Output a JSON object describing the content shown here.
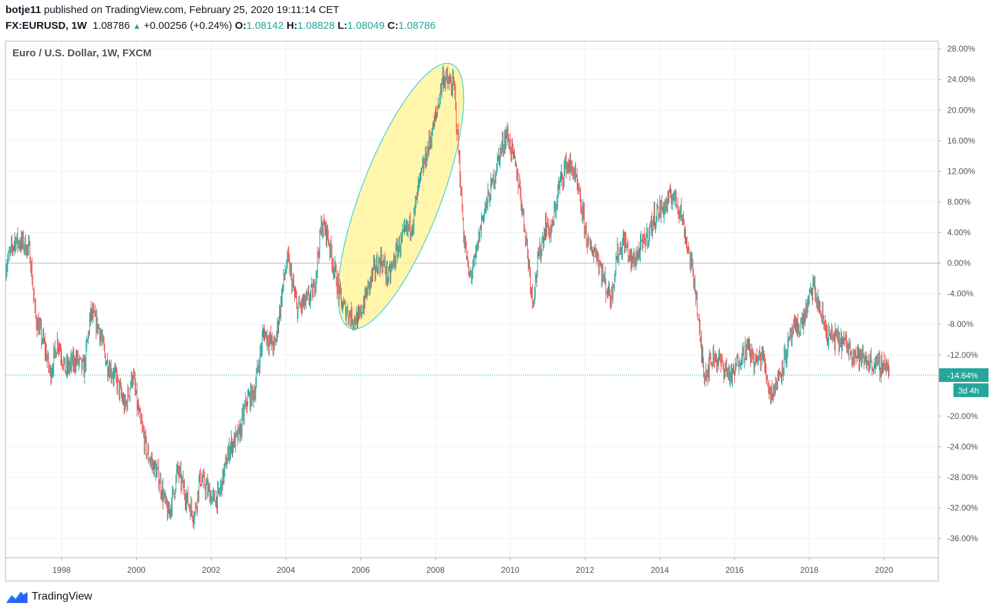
{
  "header": {
    "user": "botje11",
    "published": "published on TradingView.com, February 25, 2020 19:11:14 CET",
    "symbol": "FX:EURUSD, 1W",
    "last": "1.08786",
    "change": "+0.00256 (+0.24%)",
    "o_label": "O:",
    "o": "1.08142",
    "h_label": "H:",
    "h": "1.08828",
    "l_label": "L:",
    "l": "1.08049",
    "c_label": "C:",
    "c": "1.08786"
  },
  "brand": {
    "name": "TradingView",
    "icon": "tradingview-logo-icon"
  },
  "colors": {
    "up": "#26a69a",
    "down": "#ef5350",
    "highlight_fill": "#fff59d",
    "highlight_stroke": "#4dd0e1"
  },
  "chart_data": {
    "type": "candlestick",
    "title": "Euro / U.S. Dollar, 1W, FXCM",
    "y_unit": "%",
    "ylim": [
      -38.5,
      29.0
    ],
    "xlim": [
      1996.5,
      2021.45
    ],
    "y_ticks": [
      "28.00%",
      "24.00%",
      "20.00%",
      "16.00%",
      "12.00%",
      "8.00%",
      "4.00%",
      "0.00%",
      "-4.00%",
      "-8.00%",
      "-12.00%",
      "-20.00%",
      "-24.00%",
      "-28.00%",
      "-32.00%",
      "-36.00%"
    ],
    "x_ticks": [
      "1998",
      "2000",
      "2002",
      "2004",
      "2006",
      "2008",
      "2010",
      "2012",
      "2014",
      "2016",
      "2018",
      "2020"
    ],
    "grid": true,
    "zero_line": 0.0,
    "current": {
      "value": -14.64,
      "label": "-14.64%",
      "countdown": "3d 4h"
    },
    "price_path": [
      [
        1996.5,
        -0.5
      ],
      [
        1996.75,
        3.0
      ],
      [
        1997.0,
        2.5
      ],
      [
        1997.15,
        1.5
      ],
      [
        1997.3,
        -7.0
      ],
      [
        1997.55,
        -11.0
      ],
      [
        1997.7,
        -14.5
      ],
      [
        1997.9,
        -10.0
      ],
      [
        1998.1,
        -14.0
      ],
      [
        1998.4,
        -12.5
      ],
      [
        1998.6,
        -14.0
      ],
      [
        1998.78,
        -6.5
      ],
      [
        1999.0,
        -8.5
      ],
      [
        1999.2,
        -13.0
      ],
      [
        1999.45,
        -15.0
      ],
      [
        1999.7,
        -19.0
      ],
      [
        1999.9,
        -14.5
      ],
      [
        2000.05,
        -19.5
      ],
      [
        2000.3,
        -25.0
      ],
      [
        2000.6,
        -28.0
      ],
      [
        2000.85,
        -33.0
      ],
      [
        2001.0,
        -30.0
      ],
      [
        2001.1,
        -27.0
      ],
      [
        2001.4,
        -31.5
      ],
      [
        2001.55,
        -33.0
      ],
      [
        2001.7,
        -28.0
      ],
      [
        2001.95,
        -30.0
      ],
      [
        2002.05,
        -31.0
      ],
      [
        2002.2,
        -30.5
      ],
      [
        2002.5,
        -24.0
      ],
      [
        2002.75,
        -22.5
      ],
      [
        2002.95,
        -18.0
      ],
      [
        2003.15,
        -17.0
      ],
      [
        2003.4,
        -9.0
      ],
      [
        2003.7,
        -11.0
      ],
      [
        2003.95,
        -2.0
      ],
      [
        2004.05,
        0.5
      ],
      [
        2004.3,
        -6.0
      ],
      [
        2004.55,
        -5.0
      ],
      [
        2004.75,
        -3.5
      ],
      [
        2004.95,
        5.0
      ],
      [
        2005.1,
        4.0
      ],
      [
        2005.3,
        -1.0
      ],
      [
        2005.5,
        -5.5
      ],
      [
        2005.75,
        -7.0
      ],
      [
        2005.95,
        -7.5
      ],
      [
        2006.15,
        -4.0
      ],
      [
        2006.35,
        -1.0
      ],
      [
        2006.55,
        0.5
      ],
      [
        2006.75,
        -2.0
      ],
      [
        2007.0,
        2.0
      ],
      [
        2007.2,
        4.0
      ],
      [
        2007.4,
        5.5
      ],
      [
        2007.55,
        10.0
      ],
      [
        2007.75,
        14.0
      ],
      [
        2007.95,
        18.0
      ],
      [
        2008.05,
        20.0
      ],
      [
        2008.2,
        24.5
      ],
      [
        2008.35,
        23.5
      ],
      [
        2008.5,
        23.0
      ],
      [
        2008.6,
        16.0
      ],
      [
        2008.75,
        4.0
      ],
      [
        2008.9,
        -2.0
      ],
      [
        2009.05,
        0.0
      ],
      [
        2009.25,
        6.0
      ],
      [
        2009.45,
        9.0
      ],
      [
        2009.7,
        14.0
      ],
      [
        2009.9,
        17.0
      ],
      [
        2010.05,
        14.5
      ],
      [
        2010.25,
        10.0
      ],
      [
        2010.45,
        2.0
      ],
      [
        2010.6,
        -5.0
      ],
      [
        2010.75,
        0.5
      ],
      [
        2010.95,
        5.0
      ],
      [
        2011.1,
        4.0
      ],
      [
        2011.3,
        10.0
      ],
      [
        2011.5,
        13.0
      ],
      [
        2011.7,
        12.0
      ],
      [
        2011.95,
        6.0
      ],
      [
        2012.1,
        2.0
      ],
      [
        2012.3,
        1.5
      ],
      [
        2012.55,
        -3.0
      ],
      [
        2012.7,
        -4.5
      ],
      [
        2012.85,
        1.0
      ],
      [
        2013.05,
        3.0
      ],
      [
        2013.25,
        0.0
      ],
      [
        2013.45,
        1.5
      ],
      [
        2013.7,
        4.0
      ],
      [
        2013.9,
        6.5
      ],
      [
        2014.15,
        7.5
      ],
      [
        2014.35,
        9.0
      ],
      [
        2014.55,
        7.0
      ],
      [
        2014.75,
        2.0
      ],
      [
        2014.95,
        -3.0
      ],
      [
        2015.05,
        -9.0
      ],
      [
        2015.2,
        -14.5
      ],
      [
        2015.45,
        -12.0
      ],
      [
        2015.7,
        -13.5
      ],
      [
        2015.95,
        -15.0
      ],
      [
        2016.1,
        -12.5
      ],
      [
        2016.35,
        -11.0
      ],
      [
        2016.55,
        -13.0
      ],
      [
        2016.75,
        -12.0
      ],
      [
        2016.95,
        -17.0
      ],
      [
        2017.1,
        -16.0
      ],
      [
        2017.3,
        -13.0
      ],
      [
        2017.55,
        -9.0
      ],
      [
        2017.8,
        -8.0
      ],
      [
        2017.95,
        -5.5
      ],
      [
        2018.1,
        -3.0
      ],
      [
        2018.3,
        -6.5
      ],
      [
        2018.5,
        -9.5
      ],
      [
        2018.75,
        -10.0
      ],
      [
        2018.95,
        -10.5
      ],
      [
        2019.15,
        -11.5
      ],
      [
        2019.4,
        -12.5
      ],
      [
        2019.65,
        -13.0
      ],
      [
        2019.85,
        -13.5
      ],
      [
        2020.05,
        -13.0
      ],
      [
        2020.15,
        -14.64
      ]
    ],
    "annotation": {
      "type": "ellipse",
      "label": "",
      "start": [
        2005.8,
        -7.5
      ],
      "end": [
        2008.35,
        25.0
      ]
    }
  }
}
